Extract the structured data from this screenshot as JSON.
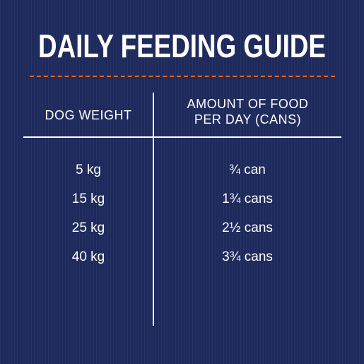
{
  "title": "DAILY FEEDING GUIDE",
  "colors": {
    "background": "#1e2a5c",
    "accent_divider": "#e4651e",
    "text": "#ffffff"
  },
  "table": {
    "headers": {
      "weight": "DOG WEIGHT",
      "amount_line1": "AMOUNT OF FOOD",
      "amount_line2": "PER DAY (CANS)"
    },
    "rows": [
      {
        "weight": "5 kg",
        "amount": "¾ can"
      },
      {
        "weight": "15 kg",
        "amount": "1¾ cans"
      },
      {
        "weight": "25 kg",
        "amount": "2½ cans"
      },
      {
        "weight": "40 kg",
        "amount": "3¾ cans"
      }
    ]
  }
}
